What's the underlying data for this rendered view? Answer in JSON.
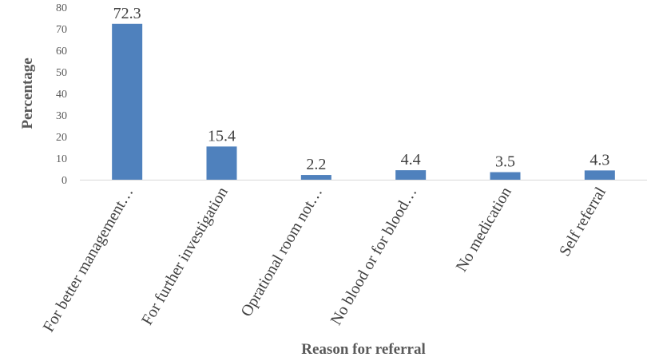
{
  "chart_data": {
    "type": "bar",
    "title": "",
    "xlabel": "Reason for referral",
    "ylabel": "Percentage",
    "ylim": [
      0,
      80
    ],
    "yticks": [
      0,
      10,
      20,
      30,
      40,
      50,
      60,
      70,
      80
    ],
    "grid": false,
    "categories": [
      "For better management…",
      "For further investigation",
      "Oprational room not…",
      "No blood or for blood…",
      "No medication",
      "Self referral"
    ],
    "values": [
      72.3,
      15.4,
      2.2,
      4.4,
      3.5,
      4.3
    ],
    "data_labels": [
      "72.3",
      "15.4",
      "2.2",
      "4.4",
      "3.5",
      "4.3"
    ],
    "colors": {
      "bar": "#4f81bd",
      "axis": "#d9d9d9"
    }
  }
}
